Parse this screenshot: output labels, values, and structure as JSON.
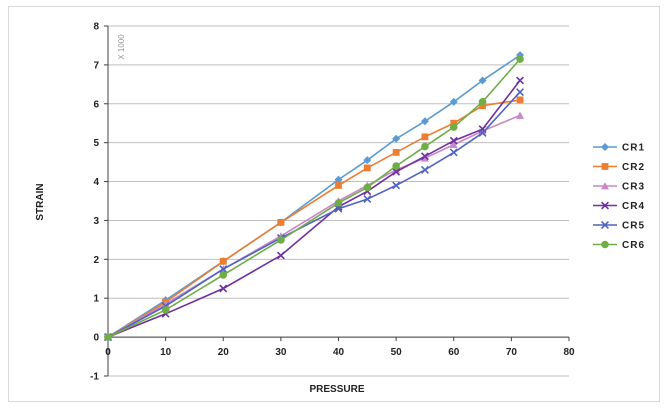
{
  "chart_data": {
    "type": "line",
    "xlabel": "PRESSURE",
    "ylabel": "STRAIN",
    "y_unit_note": "X 1000",
    "xlim": [
      0,
      80
    ],
    "ylim": [
      -1,
      8
    ],
    "x_ticks": [
      "0",
      "10",
      "20",
      "30",
      "40",
      "50",
      "60",
      "70",
      "80"
    ],
    "y_ticks": [
      "-1",
      "0",
      "1",
      "2",
      "3",
      "4",
      "5",
      "6",
      "7",
      "8"
    ],
    "grid": "horizontal",
    "legend_position": "right",
    "series": [
      {
        "name": "CR1",
        "color": "#5b9bd5",
        "marker": "diamond",
        "x": [
          0,
          10,
          20,
          30,
          40,
          45,
          50,
          55,
          60,
          65,
          71.5
        ],
        "y": [
          0,
          0.95,
          1.95,
          2.95,
          4.05,
          4.55,
          5.1,
          5.55,
          6.05,
          6.6,
          7.25
        ]
      },
      {
        "name": "CR2",
        "color": "#ed7d31",
        "marker": "square",
        "x": [
          0,
          10,
          20,
          30,
          40,
          45,
          50,
          55,
          60,
          65,
          71.5
        ],
        "y": [
          0,
          0.9,
          1.95,
          2.95,
          3.9,
          4.35,
          4.75,
          5.15,
          5.5,
          5.95,
          6.1
        ]
      },
      {
        "name": "CR3",
        "color": "#c987c9",
        "marker": "triangle",
        "x": [
          0,
          10,
          20,
          30,
          40,
          45,
          50,
          55,
          60,
          65,
          71.5
        ],
        "y": [
          0,
          0.85,
          1.75,
          2.6,
          3.5,
          3.9,
          4.3,
          4.6,
          4.95,
          5.3,
          5.7
        ]
      },
      {
        "name": "CR4",
        "color": "#7030a0",
        "marker": "x",
        "x": [
          0,
          10,
          20,
          30,
          40,
          45,
          50,
          55,
          60,
          65,
          71.5
        ],
        "y": [
          0,
          0.6,
          1.25,
          2.1,
          3.35,
          3.75,
          4.25,
          4.65,
          5.05,
          5.35,
          6.6
        ]
      },
      {
        "name": "CR5",
        "color": "#4f63c4",
        "marker": "x",
        "x": [
          0,
          10,
          20,
          30,
          40,
          45,
          50,
          55,
          60,
          65,
          71.5
        ],
        "y": [
          0,
          0.8,
          1.75,
          2.55,
          3.3,
          3.55,
          3.9,
          4.3,
          4.75,
          5.25,
          6.3
        ]
      },
      {
        "name": "CR6",
        "color": "#70ad47",
        "marker": "circle",
        "x": [
          0,
          10,
          20,
          30,
          40,
          45,
          50,
          55,
          60,
          65,
          71.5
        ],
        "y": [
          0,
          0.7,
          1.6,
          2.5,
          3.45,
          3.85,
          4.4,
          4.9,
          5.4,
          6.05,
          7.15
        ]
      }
    ]
  }
}
